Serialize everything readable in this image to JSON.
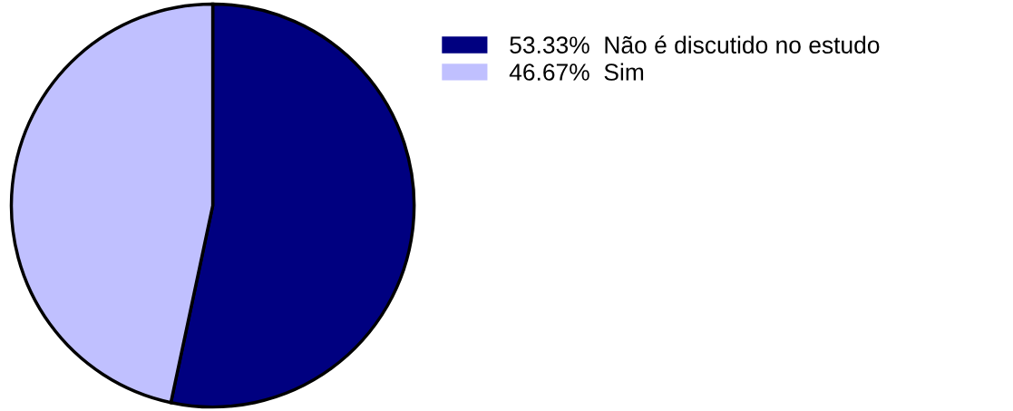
{
  "chart_data": {
    "type": "pie",
    "categories": [
      "Não é discutido no estudo",
      "Sim"
    ],
    "values": [
      53.33,
      46.67
    ],
    "value_labels": [
      "53.33%",
      "46.67%"
    ],
    "colors": [
      "#000080",
      "#c0c0ff"
    ],
    "legend": "top right"
  }
}
